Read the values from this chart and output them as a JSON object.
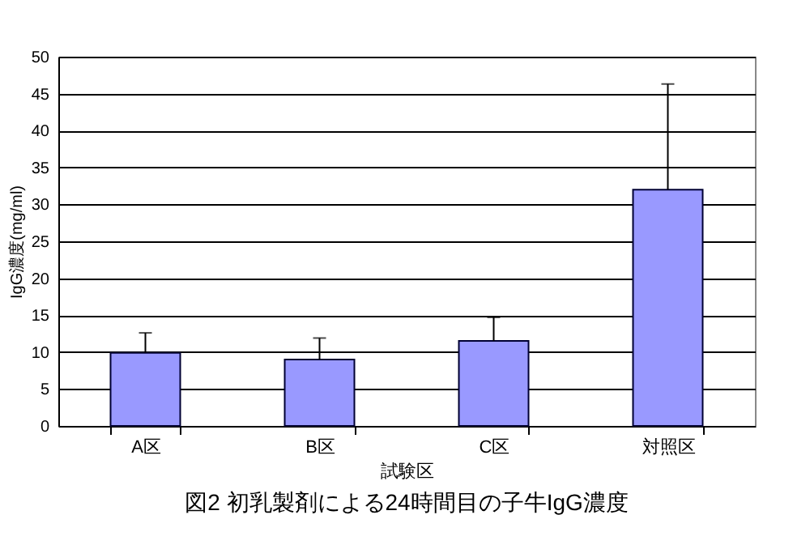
{
  "chart_data": {
    "type": "bar",
    "title": "図2  初乳製剤による24時間目の子牛IgG濃度",
    "xlabel": "試験区",
    "ylabel": "IgG濃度(mg/ml)",
    "categories": [
      "A区",
      "B区",
      "C区",
      "対照区"
    ],
    "values": [
      9.9,
      9.0,
      11.5,
      32.0
    ],
    "errors": [
      [
        9.9,
        12.6
      ],
      [
        9.0,
        11.9
      ],
      [
        11.5,
        14.7
      ],
      [
        32.0,
        46.3
      ]
    ],
    "color": "#9999ff",
    "ylim": [
      0,
      50
    ],
    "yticks": [
      0,
      5,
      10,
      15,
      20,
      25,
      30,
      35,
      40,
      45,
      50
    ],
    "grid": "y"
  }
}
